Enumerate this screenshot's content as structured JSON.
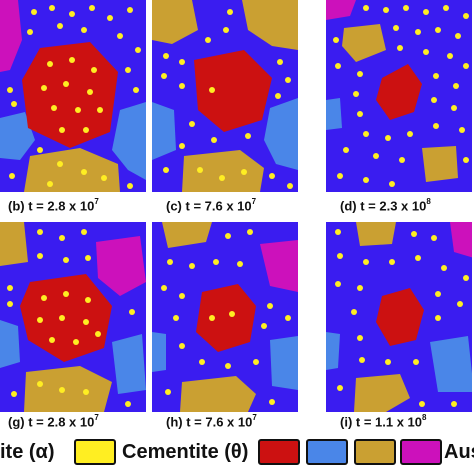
{
  "panels": [
    {
      "caption": "(b) t = 2.8 x 10",
      "exp": "7"
    },
    {
      "caption": "(c) t = 7.6 x 10",
      "exp": "7"
    },
    {
      "caption": "(d) t = 2.3 x 10",
      "exp": "8"
    },
    {
      "caption": "(g) t = 2.8 x 10",
      "exp": "7"
    },
    {
      "caption": "(h) t = 7.6 x 10",
      "exp": "7"
    },
    {
      "caption": "(i) t = 1.1 x 10",
      "exp": "8"
    }
  ],
  "legend": {
    "ferrite_label": "ite (α)",
    "cementite_label": "Cementite (θ)",
    "austenite_label": "Aus"
  },
  "colors": {
    "ferrite": "#3a1cf0",
    "cementite": "#ffee22",
    "austenite_red": "#cc1111",
    "austenite_lightblue": "#4a86e8",
    "austenite_tan": "#caa032",
    "austenite_magenta": "#cc11bb"
  }
}
